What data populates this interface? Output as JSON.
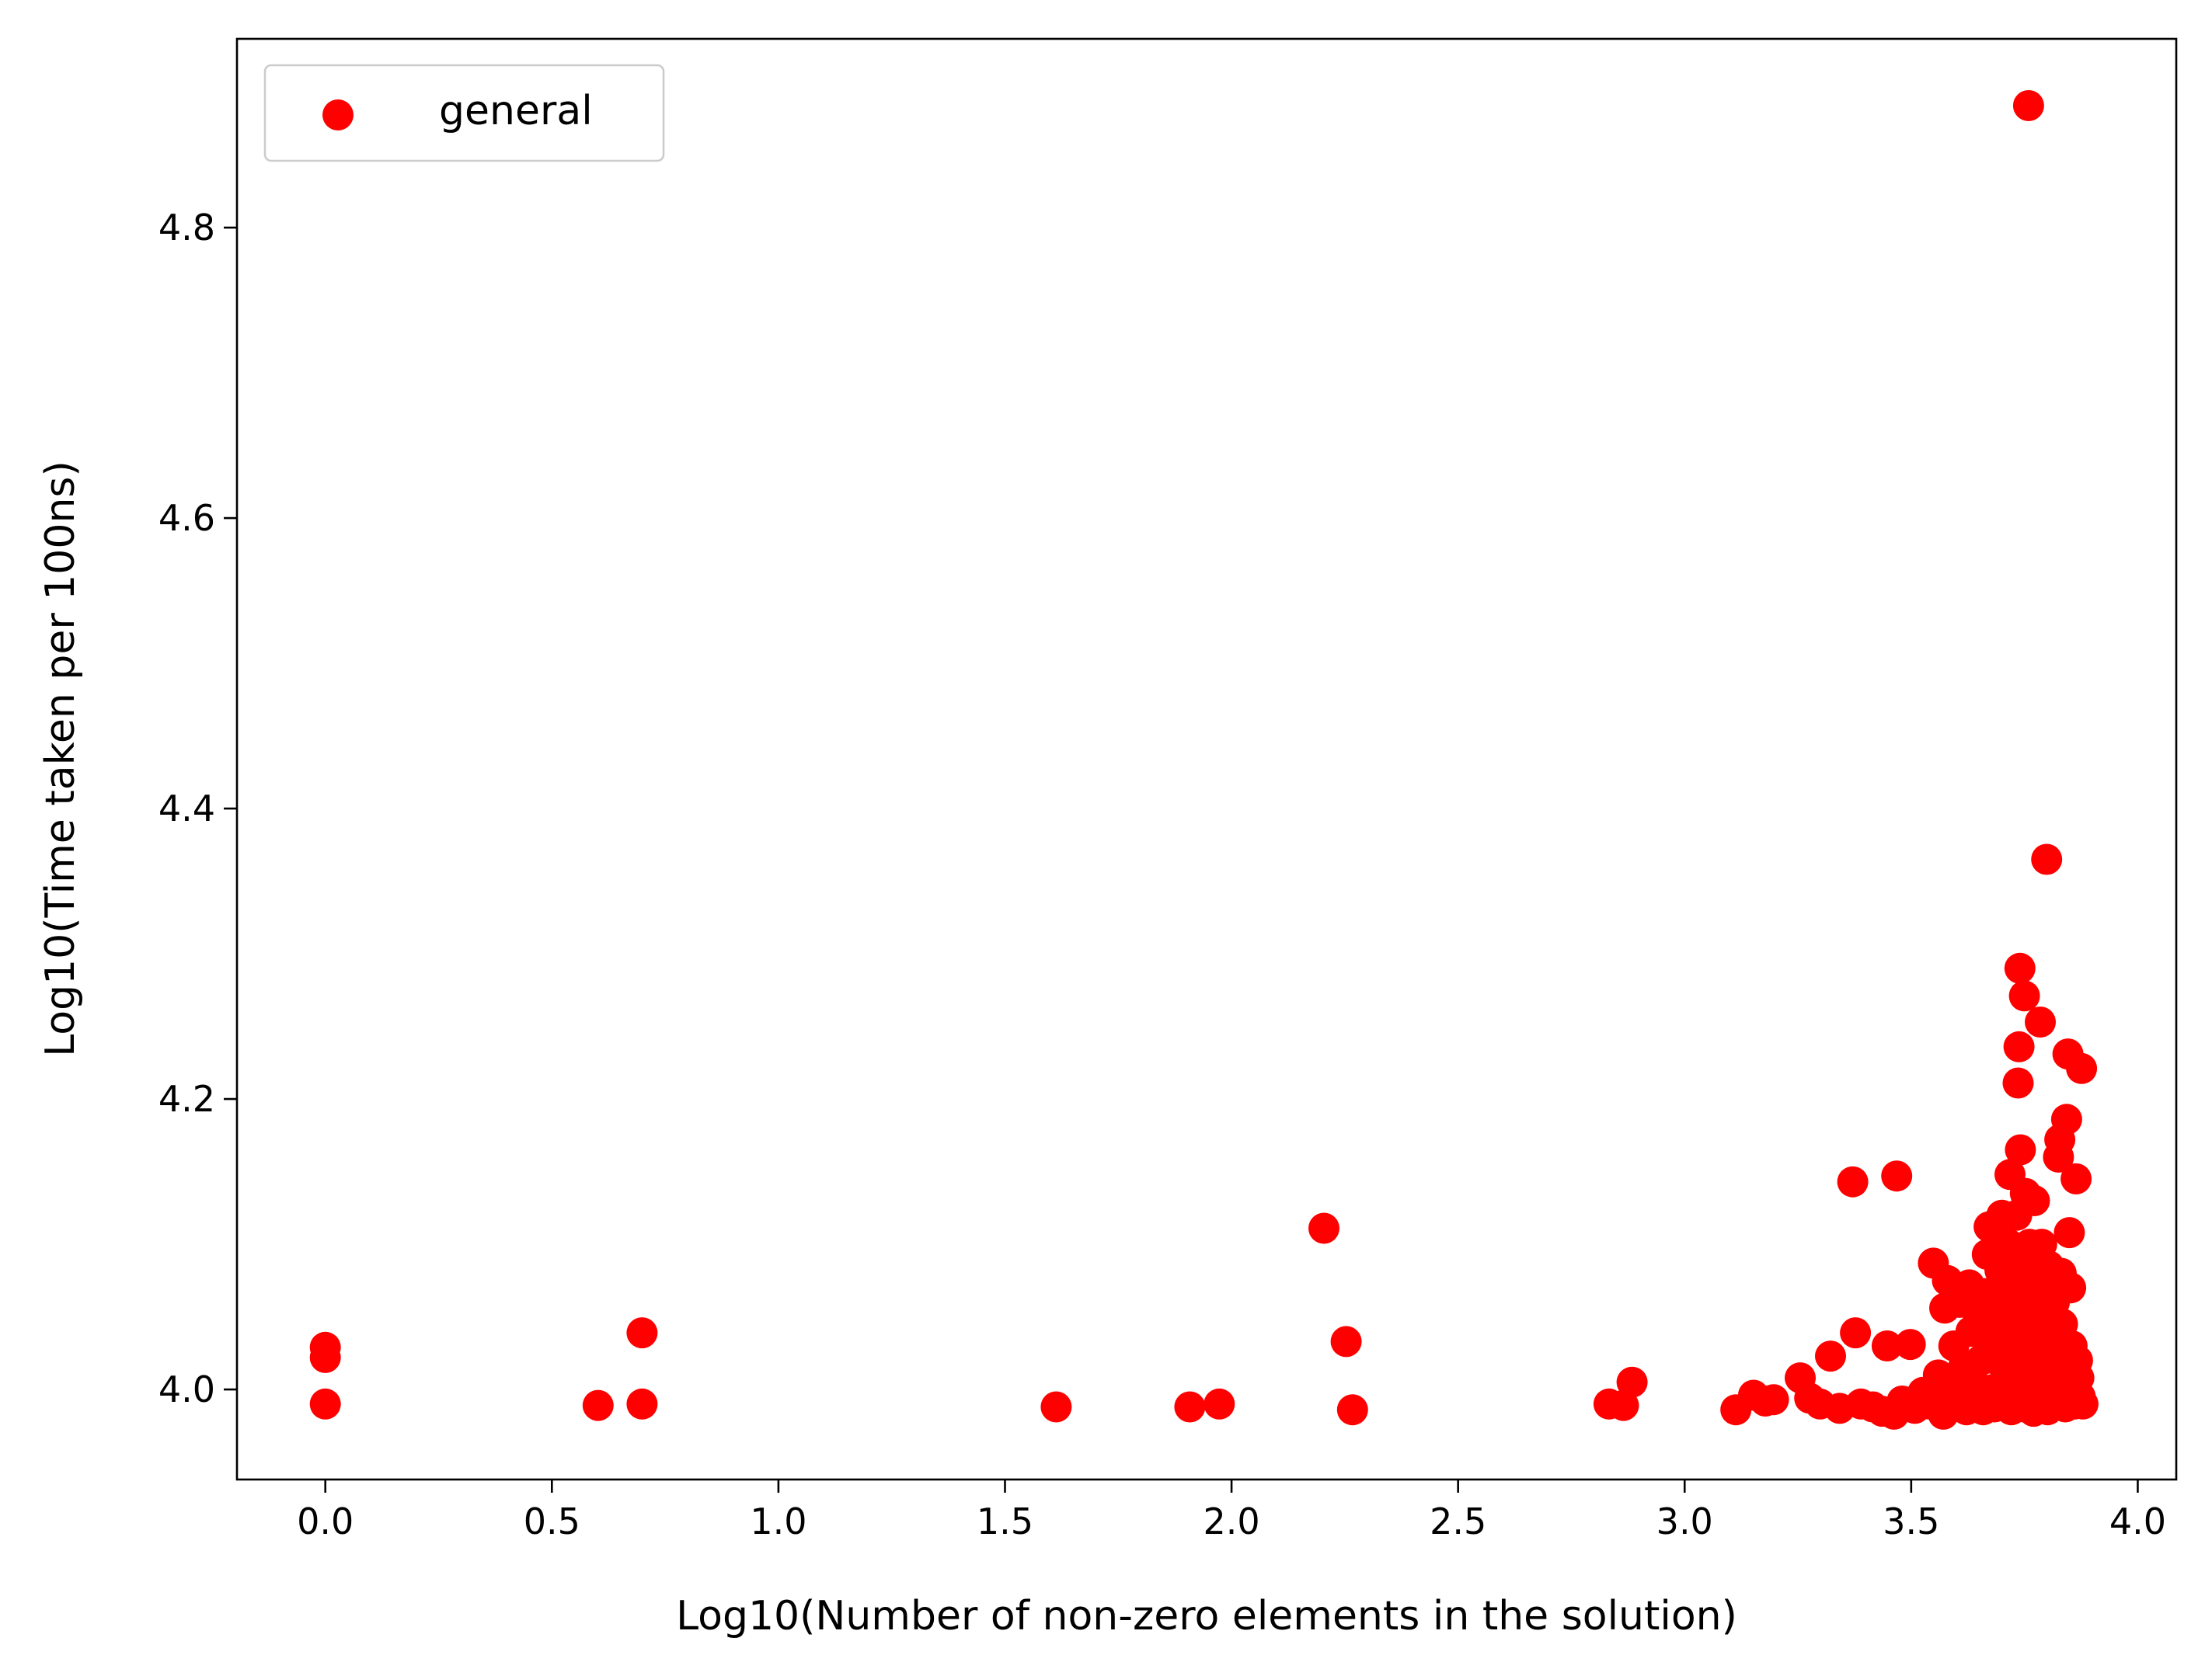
{
  "chart_data": {
    "type": "scatter",
    "xlabel": "Log10(Number of non-zero elements in the solution)",
    "ylabel": "Log10(Time taken per 100ns)",
    "xlim": [
      -0.195,
      4.085
    ],
    "ylim": [
      3.938,
      4.93
    ],
    "xticks": [
      0.0,
      0.5,
      1.0,
      1.5,
      2.0,
      2.5,
      3.0,
      3.5,
      4.0
    ],
    "xtick_labels": [
      "0.0",
      "0.5",
      "1.0",
      "1.5",
      "2.0",
      "2.5",
      "3.0",
      "3.5",
      "4.0"
    ],
    "yticks": [
      4.0,
      4.2,
      4.4,
      4.6,
      4.8
    ],
    "ytick_labels": [
      "4.0",
      "4.2",
      "4.4",
      "4.6",
      "4.8"
    ],
    "grid": false,
    "legend_position": "top-left",
    "series": [
      {
        "name": "general",
        "color": "#ff0000",
        "points": [
          [
            0.0,
            4.029
          ],
          [
            0.0,
            4.022
          ],
          [
            0.0,
            3.99
          ],
          [
            0.602,
            3.989
          ],
          [
            0.699,
            4.039
          ],
          [
            0.699,
            3.99
          ],
          [
            1.613,
            3.988
          ],
          [
            1.908,
            3.988
          ],
          [
            1.973,
            3.99
          ],
          [
            2.204,
            4.111
          ],
          [
            2.253,
            4.033
          ],
          [
            2.267,
            3.986
          ],
          [
            2.833,
            3.99
          ],
          [
            2.865,
            3.989
          ],
          [
            2.884,
            4.005
          ],
          [
            3.113,
            3.986
          ],
          [
            3.152,
            3.996
          ],
          [
            3.178,
            3.992
          ],
          [
            3.196,
            3.993
          ],
          [
            3.255,
            4.008
          ],
          [
            3.276,
            3.994
          ],
          [
            3.299,
            3.99
          ],
          [
            3.322,
            4.023
          ],
          [
            3.342,
            3.987
          ],
          [
            3.371,
            4.143
          ],
          [
            3.377,
            4.039
          ],
          [
            3.389,
            3.99
          ],
          [
            3.415,
            3.988
          ],
          [
            3.436,
            3.985
          ],
          [
            3.447,
            4.03
          ],
          [
            3.462,
            3.983
          ],
          [
            3.468,
            4.147
          ],
          [
            3.48,
            3.992
          ],
          [
            3.498,
            4.031
          ],
          [
            3.508,
            3.987
          ],
          [
            3.526,
            3.998
          ],
          [
            3.54,
            3.99
          ],
          [
            3.549,
            4.087
          ],
          [
            3.56,
            4.01
          ],
          [
            3.571,
            3.983
          ],
          [
            3.574,
            4.056
          ],
          [
            3.58,
            4.075
          ],
          [
            3.588,
            4.0
          ],
          [
            3.594,
            4.03
          ],
          [
            3.601,
            3.99
          ],
          [
            3.607,
            4.06
          ],
          [
            3.615,
            4.015
          ],
          [
            3.622,
            3.986
          ],
          [
            3.628,
            4.072
          ],
          [
            3.632,
            4.04
          ],
          [
            3.637,
            4.005
          ],
          [
            3.642,
            3.99
          ],
          [
            3.648,
            4.05
          ],
          [
            3.653,
            4.02
          ],
          [
            3.659,
            3.986
          ],
          [
            3.664,
            4.066
          ],
          [
            3.668,
            4.093
          ],
          [
            3.672,
            4.112
          ],
          [
            3.676,
            4.035
          ],
          [
            3.68,
            4.0
          ],
          [
            3.684,
            3.988
          ],
          [
            3.688,
            4.058
          ],
          [
            3.692,
            4.02
          ],
          [
            3.696,
            4.082
          ],
          [
            3.7,
            4.12
          ],
          [
            3.704,
            3.99
          ],
          [
            3.708,
            4.045
          ],
          [
            3.711,
            4.01
          ],
          [
            3.715,
            4.1
          ],
          [
            3.718,
            4.148
          ],
          [
            3.721,
            3.986
          ],
          [
            3.724,
            4.07
          ],
          [
            3.727,
            4.03
          ],
          [
            3.73,
            4.0
          ],
          [
            3.733,
            4.12
          ],
          [
            3.736,
            4.211
          ],
          [
            3.738,
            4.236
          ],
          [
            3.74,
            4.29
          ],
          [
            3.741,
            4.165
          ],
          [
            3.742,
            4.09
          ],
          [
            3.744,
            4.05
          ],
          [
            3.746,
            4.015
          ],
          [
            3.748,
            3.988
          ],
          [
            3.75,
            4.271
          ],
          [
            3.752,
            4.135
          ],
          [
            3.754,
            4.06
          ],
          [
            3.756,
            4.025
          ],
          [
            3.758,
            3.99
          ],
          [
            3.759,
            4.884
          ],
          [
            3.761,
            4.1
          ],
          [
            3.763,
            4.075
          ],
          [
            3.765,
            4.04
          ],
          [
            3.767,
            4.005
          ],
          [
            3.77,
            3.985
          ],
          [
            3.772,
            4.13
          ],
          [
            3.775,
            4.09
          ],
          [
            3.777,
            4.055
          ],
          [
            3.78,
            4.02
          ],
          [
            3.782,
            3.99
          ],
          [
            3.785,
            4.253
          ],
          [
            3.788,
            4.1
          ],
          [
            3.79,
            4.07
          ],
          [
            3.793,
            4.035
          ],
          [
            3.796,
            4.0
          ],
          [
            3.799,
            4.365
          ],
          [
            3.801,
            3.986
          ],
          [
            3.804,
            4.085
          ],
          [
            3.807,
            4.05
          ],
          [
            3.81,
            4.015
          ],
          [
            3.813,
            3.99
          ],
          [
            3.816,
            4.06
          ],
          [
            3.819,
            4.03
          ],
          [
            3.822,
            4.0
          ],
          [
            3.825,
            4.16
          ],
          [
            3.828,
            4.172
          ],
          [
            3.831,
            4.08
          ],
          [
            3.834,
            4.045
          ],
          [
            3.837,
            4.01
          ],
          [
            3.84,
            3.988
          ],
          [
            3.843,
            4.186
          ],
          [
            3.846,
            4.231
          ],
          [
            3.849,
            4.108
          ],
          [
            3.852,
            4.07
          ],
          [
            3.855,
            4.03
          ],
          [
            3.858,
            4.0
          ],
          [
            3.861,
            3.99
          ],
          [
            3.864,
            4.145
          ],
          [
            3.867,
            4.02
          ],
          [
            3.87,
            4.008
          ],
          [
            3.873,
            3.995
          ],
          [
            3.876,
            4.221
          ],
          [
            3.879,
            3.99
          ]
        ]
      }
    ]
  }
}
